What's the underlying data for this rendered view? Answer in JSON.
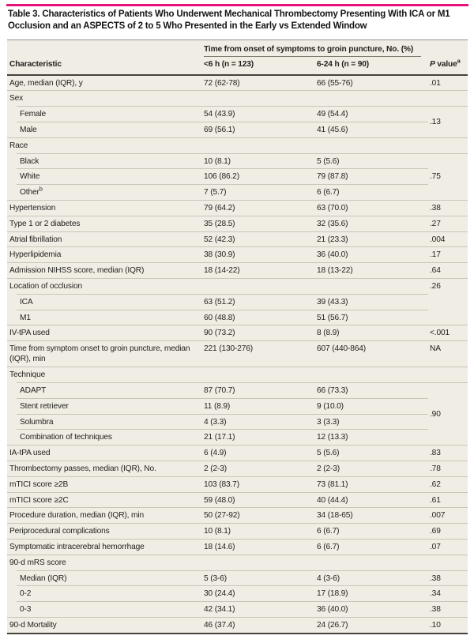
{
  "title": "Table 3. Characteristics of Patients Who Underwent Mechanical Thrombectomy Presenting With ICA or M1 Occlusion and an ASPECTS of 2 to 5 Who Presented in the Early vs Extended Window",
  "columns": {
    "spanner": "Time from onset of symptoms to groin puncture, No. (%)",
    "characteristic": "Characteristic",
    "early": "<6 h (n = 123)",
    "extended": "6-24 h (n = 90)",
    "pvalue_p": "P",
    "pvalue_rest": " value",
    "pvalue_sup": "a"
  },
  "colors": {
    "accent": "#e8127c",
    "table-bg": "#f0ede4",
    "rule": "#c9c5b9",
    "rule-dark": "#45423c",
    "text": "#201f1c"
  },
  "rows": [
    {
      "label": "Age, median (IQR), y",
      "v1": "72 (62-78)",
      "v2": "66 (55-76)",
      "p": ".01"
    },
    {
      "label": "Sex",
      "sepIndent": true,
      "p": ""
    },
    {
      "label": "Female",
      "indent": true,
      "sepIndent": true,
      "v1": "54 (43.9)",
      "v2": "49 (54.4)",
      "p": ".13",
      "pRowspan": 2
    },
    {
      "label": "Male",
      "indent": true,
      "v1": "69 (56.1)",
      "v2": "41 (45.6)",
      "pSkip": true
    },
    {
      "label": "Race",
      "sepIndent": true,
      "p": ""
    },
    {
      "label": "Black",
      "indent": true,
      "sepIndent": true,
      "v1": "10 (8.1)",
      "v2": "5 (5.6)",
      "p": ".75",
      "pRowspan": 3
    },
    {
      "label": "White",
      "indent": true,
      "sepIndent": true,
      "v1": "106 (86.2)",
      "v2": "79 (87.8)",
      "pSkip": true
    },
    {
      "label": "Other",
      "sup": "b",
      "indent": true,
      "v1": "7 (5.7)",
      "v2": "6 (6.7)",
      "pSkip": true
    },
    {
      "label": "Hypertension",
      "v1": "79 (64.2)",
      "v2": "63 (70.0)",
      "p": ".38"
    },
    {
      "label": "Type 1 or 2 diabetes",
      "v1": "35 (28.5)",
      "v2": "32 (35.6)",
      "p": ".27"
    },
    {
      "label": "Atrial fibrillation",
      "v1": "52 (42.3)",
      "v2": "21 (23.3)",
      "p": ".004"
    },
    {
      "label": "Hyperlipidemia",
      "v1": "38 (30.9)",
      "v2": "36 (40.0)",
      "p": ".17"
    },
    {
      "label": "Admission NIHSS score, median (IQR)",
      "v1": "18 (14-22)",
      "v2": "18 (13-22)",
      "p": ".64"
    },
    {
      "label": "Location of occlusion",
      "sepIndent": true,
      "p": ".26",
      "pRowspan": 3,
      "pTop": true
    },
    {
      "label": "ICA",
      "indent": true,
      "sepIndent": true,
      "v1": "63 (51.2)",
      "v2": "39 (43.3)",
      "pSkip": true
    },
    {
      "label": "M1",
      "indent": true,
      "v1": "60 (48.8)",
      "v2": "51 (56.7)",
      "pSkip": true
    },
    {
      "label": "IV-tPA used",
      "v1": "90 (73.2)",
      "v2": "8 (8.9)",
      "p": "<.001"
    },
    {
      "label": "Time from symptom onset to groin puncture, median (IQR), min",
      "v1": "221 (130-276)",
      "v2": "607 (440-864)",
      "p": "NA"
    },
    {
      "label": "Technique",
      "sepIndent": true,
      "p": ""
    },
    {
      "label": "ADAPT",
      "indent": true,
      "sepIndent": true,
      "v1": "87 (70.7)",
      "v2": "66 (73.3)",
      "p": ".90",
      "pRowspan": 4
    },
    {
      "label": "Stent retriever",
      "indent": true,
      "sepIndent": true,
      "v1": "11 (8.9)",
      "v2": "9 (10.0)",
      "pSkip": true
    },
    {
      "label": "Solumbra",
      "indent": true,
      "sepIndent": true,
      "v1": "4 (3.3)",
      "v2": "3 (3.3)",
      "pSkip": true
    },
    {
      "label": "Combination of techniques",
      "indent": true,
      "v1": "21 (17.1)",
      "v2": "12 (13.3)",
      "pSkip": true
    },
    {
      "label": "IA-tPA used",
      "v1": "6 (4.9)",
      "v2": "5 (5.6)",
      "p": ".83"
    },
    {
      "label": "Thrombectomy passes, median (IQR), No.",
      "v1": "2 (2-3)",
      "v2": "2 (2-3)",
      "p": ".78"
    },
    {
      "label": "mTICI score ≥2B",
      "v1": "103 (83.7)",
      "v2": "73 (81.1)",
      "p": ".62"
    },
    {
      "label": "mTICI score ≥2C",
      "v1": "59 (48.0)",
      "v2": "40 (44.4)",
      "p": ".61"
    },
    {
      "label": "Procedure duration, median (IQR), min",
      "v1": "50 (27-92)",
      "v2": "34 (18-65)",
      "p": ".007"
    },
    {
      "label": "Periprocedural complications",
      "v1": "10 (8.1)",
      "v2": "6 (6.7)",
      "p": ".69"
    },
    {
      "label": "Symptomatic intracerebral hemorrhage",
      "v1": "18 (14.6)",
      "v2": "6 (6.7)",
      "p": ".07"
    },
    {
      "label": "90-d mRS score",
      "sepIndent": true,
      "p": ""
    },
    {
      "label": "Median (IQR)",
      "indent": true,
      "sepIndent": true,
      "v1": "5 (3-6)",
      "v2": "4 (3-6)",
      "p": ".38"
    },
    {
      "label": "0-2",
      "indent": true,
      "sepIndent": true,
      "v1": "30 (24.4)",
      "v2": "17 (18.9)",
      "p": ".34"
    },
    {
      "label": "0-3",
      "indent": true,
      "v1": "42 (34.1)",
      "v2": "36 (40.0)",
      "p": ".38"
    },
    {
      "label": "90-d Mortality",
      "v1": "46 (37.4)",
      "v2": "24 (26.7)",
      "p": ".10",
      "last": true
    }
  ]
}
